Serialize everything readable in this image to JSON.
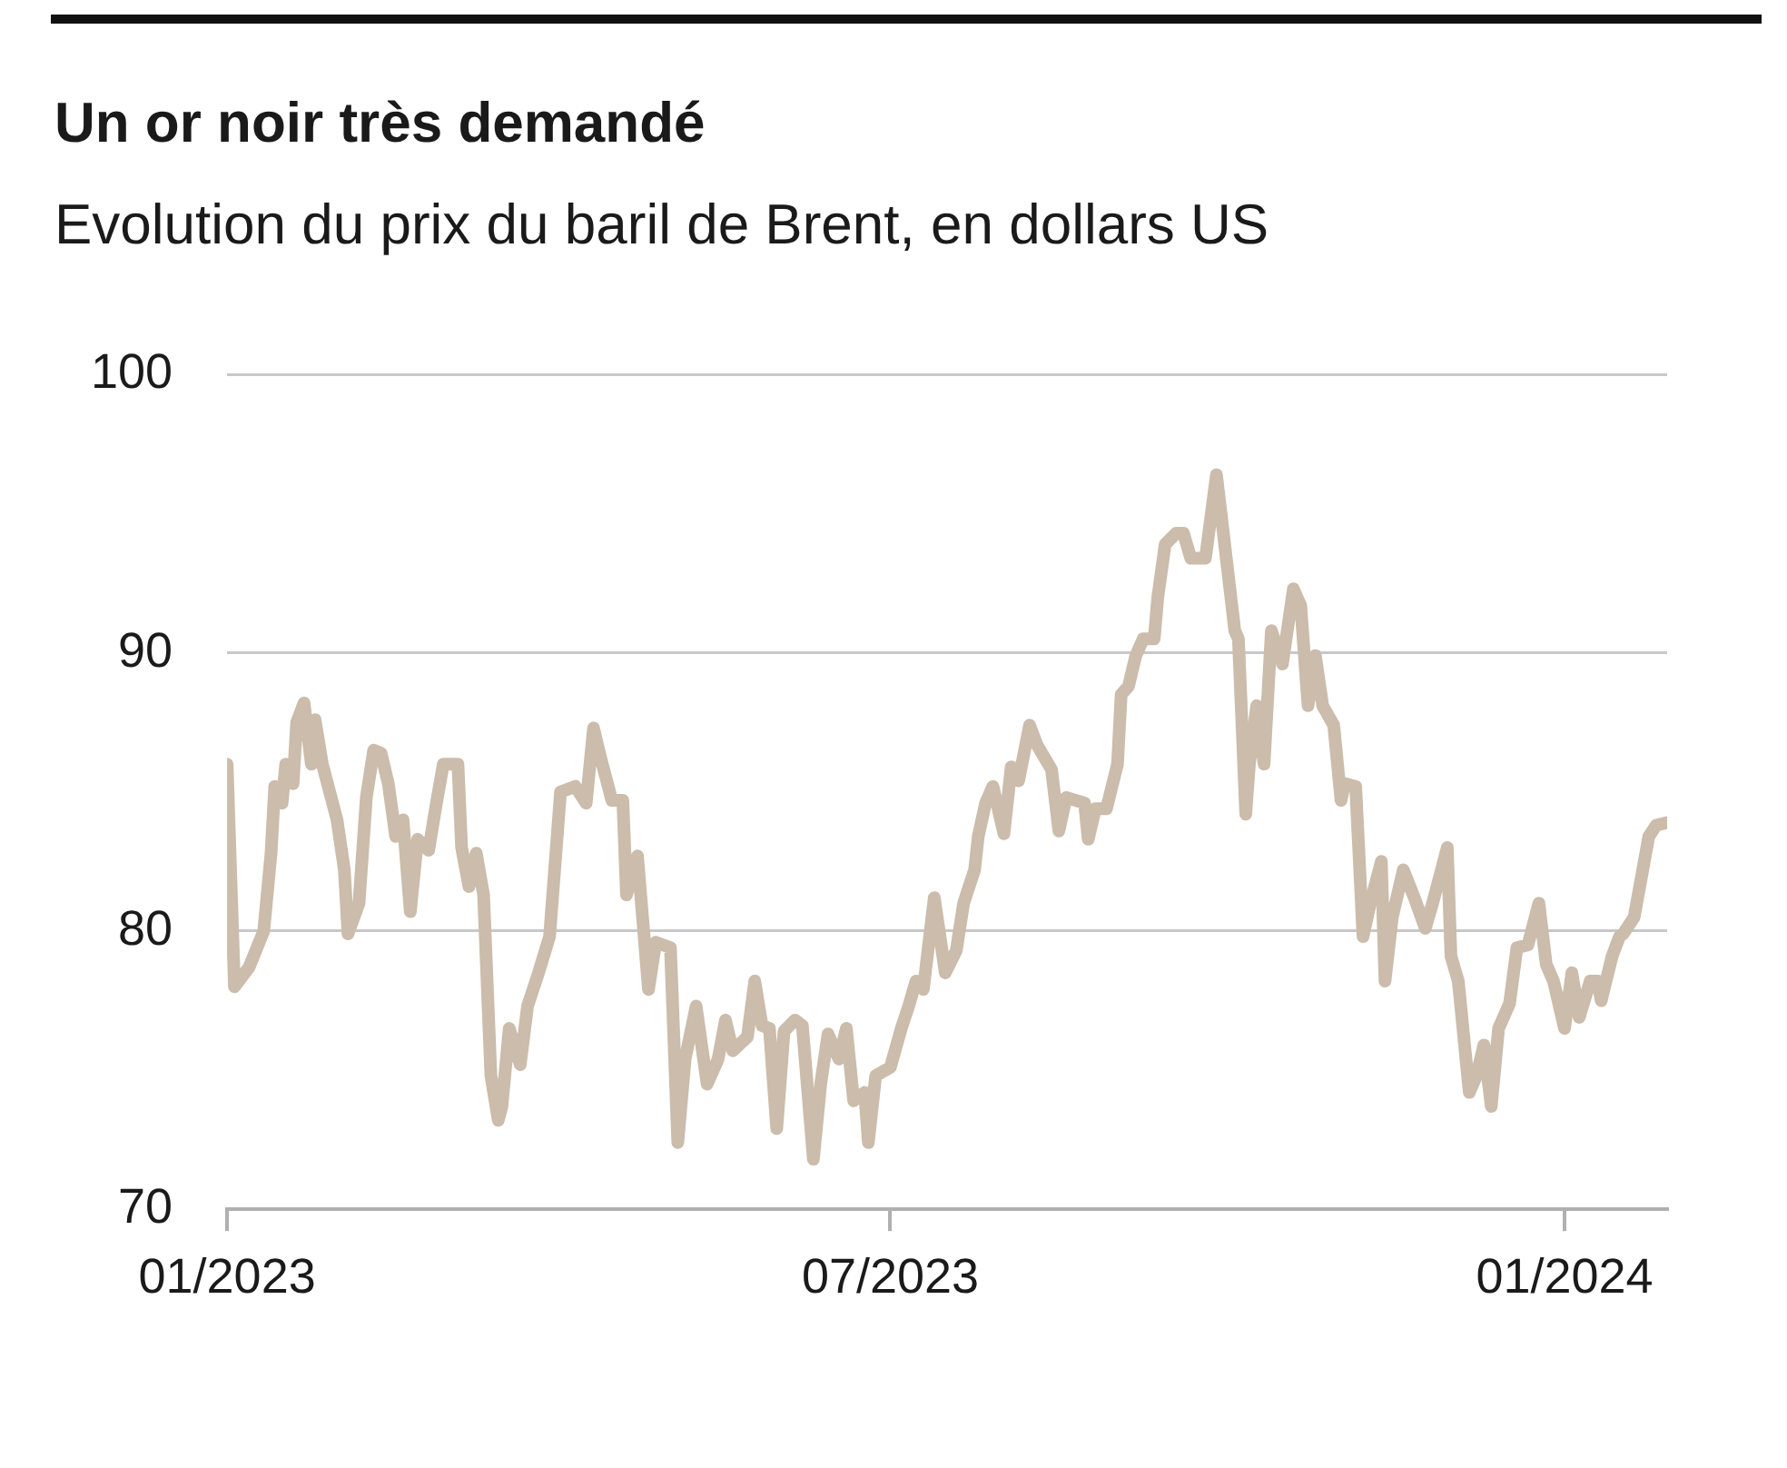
{
  "chart_data": {
    "type": "line",
    "title": "Un or noir très demandé",
    "subtitle": "Evolution du prix du baril de Brent, en dollars US",
    "x": [
      "2023-01-01",
      "2023-01-03",
      "2023-01-07",
      "2023-01-11",
      "2023-01-13",
      "2023-01-14",
      "2023-01-16",
      "2023-01-17",
      "2023-01-19",
      "2023-01-20",
      "2023-01-22",
      "2023-01-24",
      "2023-01-25",
      "2023-01-27",
      "2023-01-31",
      "2023-02-02",
      "2023-02-03",
      "2023-02-06",
      "2023-02-08",
      "2023-02-10",
      "2023-02-12",
      "2023-02-14",
      "2023-02-16",
      "2023-02-18",
      "2023-02-20",
      "2023-02-22",
      "2023-02-25",
      "2023-02-27",
      "2023-03-01",
      "2023-03-05",
      "2023-03-06",
      "2023-03-08",
      "2023-03-10",
      "2023-03-12",
      "2023-03-14",
      "2023-03-16",
      "2023-03-17",
      "2023-03-19",
      "2023-03-22",
      "2023-03-24",
      "2023-03-27",
      "2023-03-30",
      "2023-04-02",
      "2023-04-06",
      "2023-04-09",
      "2023-04-11",
      "2023-04-13",
      "2023-04-16",
      "2023-04-19",
      "2023-04-20",
      "2023-04-23",
      "2023-04-26",
      "2023-04-28",
      "2023-05-02",
      "2023-05-04",
      "2023-05-06",
      "2023-05-09",
      "2023-05-12",
      "2023-05-15",
      "2023-05-17",
      "2023-05-19",
      "2023-05-23",
      "2023-05-25",
      "2023-05-27",
      "2023-05-29",
      "2023-05-31",
      "2023-06-02",
      "2023-06-05",
      "2023-06-07",
      "2023-06-10",
      "2023-06-12",
      "2023-06-14",
      "2023-06-17",
      "2023-06-19",
      "2023-06-21",
      "2023-06-24",
      "2023-06-25",
      "2023-06-27",
      "2023-07-01",
      "2023-07-04",
      "2023-07-06",
      "2023-07-08",
      "2023-07-10",
      "2023-07-13",
      "2023-07-16",
      "2023-07-19",
      "2023-07-21",
      "2023-07-24",
      "2023-07-25",
      "2023-07-27",
      "2023-07-29",
      "2023-08-01",
      "2023-08-03",
      "2023-08-05",
      "2023-08-08",
      "2023-08-10",
      "2023-08-14",
      "2023-08-16",
      "2023-08-18",
      "2023-08-23",
      "2023-08-24",
      "2023-08-26",
      "2023-08-29",
      "2023-09-01",
      "2023-09-02",
      "2023-09-04",
      "2023-09-06",
      "2023-09-08",
      "2023-09-11",
      "2023-09-12",
      "2023-09-14",
      "2023-09-17",
      "2023-09-19",
      "2023-09-21",
      "2023-09-25",
      "2023-09-28",
      "2023-09-29",
      "2023-10-03",
      "2023-10-04",
      "2023-10-06",
      "2023-10-07",
      "2023-10-09",
      "2023-10-11",
      "2023-10-13",
      "2023-10-16",
      "2023-10-19",
      "2023-10-21",
      "2023-10-23",
      "2023-10-25",
      "2023-10-27",
      "2023-10-30",
      "2023-11-01",
      "2023-11-02",
      "2023-11-05",
      "2023-11-07",
      "2023-11-09",
      "2023-11-12",
      "2023-11-13",
      "2023-11-15",
      "2023-11-18",
      "2023-11-21",
      "2023-11-24",
      "2023-11-26",
      "2023-11-30",
      "2023-12-01",
      "2023-12-03",
      "2023-12-06",
      "2023-12-08",
      "2023-12-10",
      "2023-12-12",
      "2023-12-14",
      "2023-12-17",
      "2023-12-19",
      "2023-12-22",
      "2023-12-25",
      "2023-12-27",
      "2023-12-29",
      "2024-01-01",
      "2024-01-03",
      "2024-01-05",
      "2024-01-08",
      "2024-01-10",
      "2024-01-11",
      "2024-01-14",
      "2024-01-16",
      "2024-01-17",
      "2024-01-20",
      "2024-01-24",
      "2024-01-26",
      "2024-01-29"
    ],
    "series": [
      {
        "color": "#cbbcab",
        "values": [
          86,
          78,
          78.7,
          80,
          82.8,
          85.2,
          84.6,
          86,
          85.3,
          87.5,
          88.2,
          86,
          87.6,
          86,
          84,
          82.2,
          79.9,
          81,
          84.8,
          86.5,
          86.4,
          85.3,
          83.4,
          84,
          80.7,
          83.3,
          82.9,
          84.5,
          86,
          86,
          83,
          81.6,
          82.8,
          81.3,
          74.8,
          73.2,
          73.7,
          76.5,
          75.2,
          77.3,
          78.5,
          79.8,
          85,
          85.2,
          84.6,
          87.3,
          86.2,
          84.7,
          84.7,
          81.3,
          82.7,
          77.9,
          79.6,
          79.4,
          72.4,
          75.4,
          77.3,
          74.5,
          75.4,
          76.8,
          75.7,
          76.2,
          78.2,
          76.6,
          76.5,
          72.9,
          76.4,
          76.8,
          76.6,
          71.8,
          74.5,
          76.3,
          75.4,
          76.5,
          73.9,
          74.2,
          72.4,
          74.8,
          75.1,
          76.5,
          77.3,
          78.2,
          77.9,
          81.2,
          78.5,
          79.3,
          81,
          82.2,
          83.4,
          84.6,
          85.2,
          83.5,
          85.9,
          85.4,
          87.4,
          86.7,
          85.8,
          83.6,
          84.8,
          84.6,
          83.3,
          84.4,
          84.4,
          86,
          88.5,
          88.8,
          89.9,
          90.5,
          90.5,
          92,
          93.9,
          94.3,
          94.3,
          93.4,
          93.4,
          96.4,
          95.3,
          90.8,
          90.5,
          84.2,
          86,
          88.1,
          86,
          90.8,
          89.6,
          92.3,
          91.7,
          88.1,
          89.9,
          88.1,
          87.4,
          84.7,
          85.3,
          85.2,
          79.8,
          81,
          82.5,
          78.2,
          80.5,
          82.2,
          81.2,
          80.1,
          81,
          83,
          79.1,
          78.2,
          74.2,
          74.8,
          75.9,
          73.7,
          76.5,
          77.4,
          79.4,
          79.5,
          81,
          78.8,
          78.2,
          76.5,
          78.5,
          76.9,
          78.2,
          78.2,
          77.5,
          79.1,
          79.8,
          79.9,
          80.5,
          83.4,
          83.8,
          83.9
        ]
      }
    ],
    "xlim": [
      "2023-01-01",
      "2024-01-29"
    ],
    "xticks": [
      {
        "value": "2023-01-01",
        "label": "01/2023"
      },
      {
        "value": "2023-07-01",
        "label": "07/2023"
      },
      {
        "value": "2024-01-01",
        "label": "01/2024"
      }
    ],
    "ylim": [
      70,
      100
    ],
    "yticks": [
      70,
      80,
      90,
      100
    ],
    "grid": "y",
    "marker": "none",
    "line_style": "solid"
  }
}
